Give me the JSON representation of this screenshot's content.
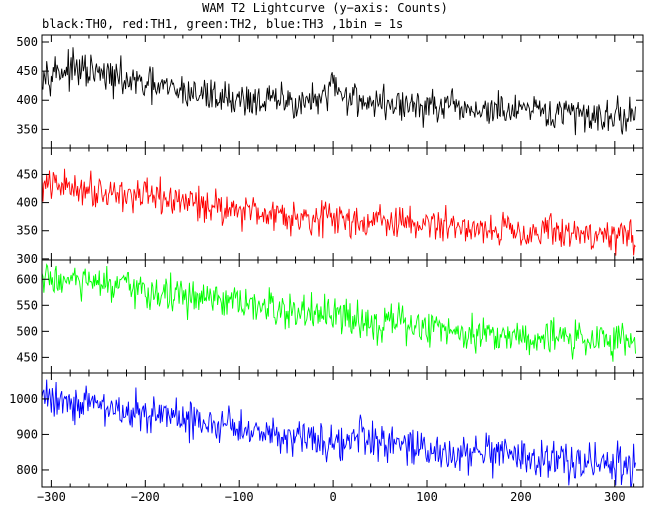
{
  "title": "WAM T2 Lightcurve (y−axis: Counts)",
  "subtitle": "black:TH0, red:TH1, green:TH2, blue:TH3 ,1bin = 1s",
  "chart_data": {
    "type": "line",
    "title": "WAM T2 Lightcurve (y−axis: Counts)",
    "subtitle": "black:TH0, red:TH1, green:TH2, blue:TH3 ,1bin = 1s",
    "xlim": [
      -310,
      330
    ],
    "x_ticks": [
      -300,
      -200,
      -100,
      0,
      100,
      200,
      300
    ],
    "x_tick_labels": [
      "−300",
      "−200",
      "−100",
      "0",
      "100",
      "200",
      "300"
    ],
    "grid": false,
    "panels": [
      {
        "channel": "TH0",
        "color": "#000000",
        "ylim": [
          318,
          512
        ],
        "y_ticks": [
          350,
          400,
          450,
          500
        ],
        "x": [
          -300,
          -280,
          -260,
          -240,
          -220,
          -200,
          -180,
          -160,
          -140,
          -120,
          -100,
          -80,
          -60,
          -40,
          -20,
          -5,
          0,
          5,
          20,
          40,
          60,
          80,
          100,
          120,
          140,
          160,
          180,
          200,
          220,
          240,
          260,
          280,
          300,
          320
        ],
        "values": [
          450,
          452,
          448,
          440,
          433,
          425,
          420,
          415,
          410,
          406,
          402,
          400,
          398,
          397,
          398,
          400,
          440,
          415,
          405,
          397,
          393,
          390,
          388,
          386,
          384,
          383,
          381,
          380,
          378,
          377,
          376,
          375,
          374,
          373
        ],
        "noise": 22
      },
      {
        "channel": "TH1",
        "color": "#ff0000",
        "ylim": [
          298,
          497
        ],
        "y_ticks": [
          300,
          350,
          400,
          450
        ],
        "x": [
          -300,
          -280,
          -260,
          -240,
          -220,
          -200,
          -180,
          -160,
          -140,
          -120,
          -100,
          -80,
          -60,
          -40,
          -20,
          0,
          20,
          40,
          60,
          80,
          100,
          120,
          140,
          160,
          180,
          200,
          220,
          240,
          260,
          280,
          300,
          320
        ],
        "values": [
          430,
          428,
          425,
          420,
          415,
          410,
          405,
          402,
          398,
          392,
          388,
          384,
          380,
          377,
          374,
          371,
          369,
          367,
          365,
          363,
          361,
          359,
          357,
          355,
          353,
          351,
          349,
          347,
          345,
          343,
          341,
          340
        ],
        "noise": 22
      },
      {
        "channel": "TH2",
        "color": "#00ff00",
        "ylim": [
          420,
          637
        ],
        "y_ticks": [
          450,
          500,
          550,
          600
        ],
        "x": [
          -300,
          -280,
          -260,
          -240,
          -220,
          -200,
          -180,
          -160,
          -140,
          -120,
          -100,
          -80,
          -60,
          -40,
          -20,
          0,
          20,
          40,
          60,
          80,
          100,
          120,
          140,
          160,
          180,
          200,
          220,
          240,
          260,
          280,
          300,
          320
        ],
        "values": [
          600,
          597,
          592,
          587,
          582,
          577,
          572,
          567,
          562,
          556,
          551,
          546,
          541,
          536,
          532,
          528,
          524,
          520,
          516,
          512,
          508,
          504,
          500,
          497,
          494,
          491,
          489,
          487,
          486,
          485,
          484,
          484
        ],
        "noise": 26
      },
      {
        "channel": "TH3",
        "color": "#0000ff",
        "ylim": [
          752,
          1073
        ],
        "y_ticks": [
          800,
          900,
          1000
        ],
        "x": [
          -300,
          -280,
          -260,
          -240,
          -220,
          -200,
          -180,
          -160,
          -140,
          -120,
          -100,
          -80,
          -60,
          -40,
          -20,
          0,
          20,
          30,
          40,
          60,
          80,
          100,
          120,
          140,
          160,
          180,
          200,
          220,
          240,
          260,
          280,
          300,
          320
        ],
        "values": [
          1005,
          995,
          985,
          975,
          966,
          958,
          950,
          942,
          934,
          926,
          918,
          911,
          904,
          897,
          890,
          884,
          878,
          900,
          875,
          868,
          862,
          856,
          850,
          845,
          840,
          836,
          832,
          828,
          825,
          822,
          820,
          818,
          816
        ],
        "noise": 40
      }
    ]
  }
}
